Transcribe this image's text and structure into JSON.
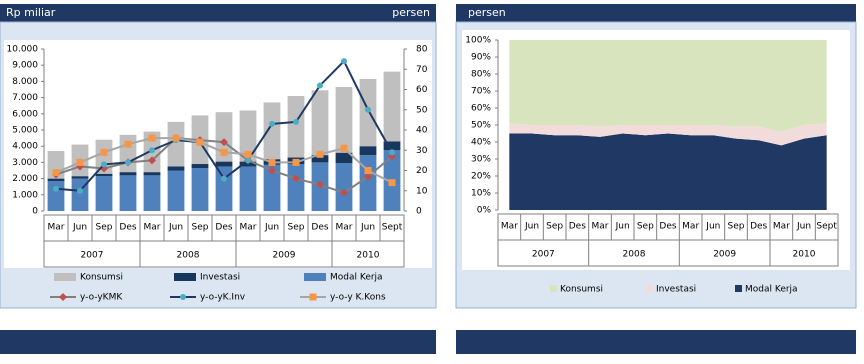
{
  "chart_data": [
    {
      "type": "bar",
      "ylabel": "Rp miliar",
      "y2label": "persen",
      "categories": [
        "Mar",
        "Jun",
        "Sep",
        "Des",
        "Mar",
        "Jun",
        "Sep",
        "Des",
        "Mar",
        "Jun",
        "Sep",
        "Des",
        "Mar",
        "Jun",
        "Sept"
      ],
      "category_groups": [
        "2007",
        "2007",
        "2007",
        "2007",
        "2008",
        "2008",
        "2008",
        "2008",
        "2009",
        "2009",
        "2009",
        "2009",
        "2010",
        "2010",
        "2010"
      ],
      "series": [
        {
          "name": "Konsumsi",
          "type": "bar",
          "color": "#bfbfbf",
          "values": [
            1700,
            1950,
            2100,
            2300,
            2500,
            2750,
            3000,
            3050,
            3150,
            3500,
            3800,
            4000,
            4050,
            4150,
            4300
          ]
        },
        {
          "name": "Investasi",
          "type": "bar",
          "color": "#17375e",
          "values": [
            150,
            150,
            150,
            200,
            200,
            250,
            250,
            300,
            300,
            350,
            400,
            450,
            650,
            550,
            550
          ]
        },
        {
          "name": "Modal Kerja",
          "type": "bar",
          "color": "#4f81bd",
          "values": [
            1850,
            2000,
            2150,
            2200,
            2200,
            2500,
            2650,
            2750,
            2750,
            2850,
            2900,
            3000,
            2950,
            3450,
            3750
          ]
        },
        {
          "name": "y-o-yKMK",
          "type": "line",
          "axis": "y2",
          "color": "#808080",
          "marker": "diamond",
          "marker_color": "#c0504d",
          "values": [
            18,
            22,
            21,
            24,
            25,
            36,
            35,
            34,
            25,
            20,
            16,
            13,
            9,
            17,
            27
          ]
        },
        {
          "name": "y-o-yK.Inv",
          "type": "line",
          "axis": "y2",
          "color": "#1f3864",
          "marker": "circle",
          "marker_color": "#4bacc6",
          "values": [
            11,
            10,
            23,
            24,
            30,
            35,
            34,
            16,
            25,
            43,
            44,
            62,
            74,
            50,
            29
          ]
        },
        {
          "name": "y-o-y K.Kons",
          "type": "line",
          "axis": "y2",
          "color": "#a6a6a6",
          "marker": "square",
          "marker_color": "#f79646",
          "values": [
            19,
            24,
            29,
            33,
            36,
            36,
            34,
            29,
            28,
            24,
            24,
            28,
            31,
            20,
            14
          ]
        }
      ],
      "ylim": [
        0,
        10000
      ],
      "yticks": [
        0,
        {
          "value": 1000,
          "label": "1.000"
        },
        {
          "value": 2000,
          "label": "2.000"
        },
        {
          "value": 3000,
          "label": "3.000"
        },
        {
          "value": 4000,
          "label": "4.000"
        },
        {
          "value": 5000,
          "label": "5.000"
        },
        {
          "value": 6000,
          "label": "6.000"
        },
        {
          "value": 7000,
          "label": "7.000"
        },
        {
          "value": 8000,
          "label": "8.000"
        },
        {
          "value": 9000,
          "label": "9.000"
        },
        {
          "value": 10000,
          "label": "10.000"
        }
      ],
      "y2lim": [
        0,
        80
      ],
      "y2ticks": [
        0,
        10,
        20,
        30,
        40,
        50,
        60,
        70,
        80
      ]
    },
    {
      "type": "area",
      "ylabel": "persen",
      "categories": [
        "Mar",
        "Jun",
        "Sep",
        "Des",
        "Mar",
        "Jun",
        "Sep",
        "Des",
        "Mar",
        "Jun",
        "Sep",
        "Des",
        "Mar",
        "Jun",
        "Sept"
      ],
      "category_groups": [
        "2007",
        "2007",
        "2007",
        "2007",
        "2008",
        "2008",
        "2008",
        "2008",
        "2009",
        "2009",
        "2009",
        "2009",
        "2010",
        "2010",
        "2010"
      ],
      "series": [
        {
          "name": "Konsumsi",
          "color": "#d7e4bd",
          "values": [
            49,
            50,
            50,
            50,
            51,
            50,
            50,
            50,
            50,
            50,
            51,
            51,
            54,
            50,
            49
          ]
        },
        {
          "name": "Investasi",
          "color": "#f2dcdb",
          "values": [
            6,
            5,
            6,
            6,
            6,
            5,
            6,
            5,
            6,
            6,
            7,
            8,
            8,
            8,
            7
          ]
        },
        {
          "name": "Modal Kerja",
          "color": "#1f3864",
          "values": [
            45,
            45,
            44,
            44,
            43,
            45,
            44,
            45,
            44,
            44,
            42,
            41,
            38,
            42,
            44
          ]
        }
      ],
      "ylim": [
        0,
        100
      ],
      "yticks": [
        {
          "value": 0,
          "label": "0%"
        },
        {
          "value": 10,
          "label": "10%"
        },
        {
          "value": 20,
          "label": "20%"
        },
        {
          "value": 30,
          "label": "30%"
        },
        {
          "value": 40,
          "label": "40%"
        },
        {
          "value": 50,
          "label": "50%"
        },
        {
          "value": 60,
          "label": "60%"
        },
        {
          "value": 70,
          "label": "70%"
        },
        {
          "value": 80,
          "label": "80%"
        },
        {
          "value": 90,
          "label": "90%"
        },
        {
          "value": 100,
          "label": "100%"
        }
      ]
    }
  ]
}
